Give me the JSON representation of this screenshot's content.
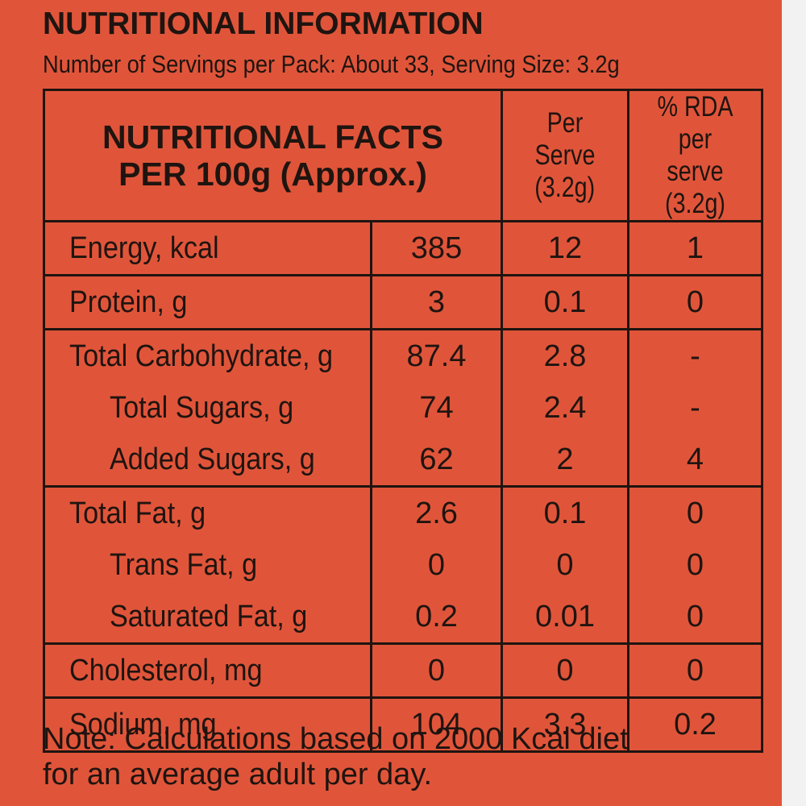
{
  "heading": "NUTRITIONAL INFORMATION",
  "servings_line": "Number of Servings per Pack: About 33, Serving Size: 3.2g",
  "table": {
    "header": {
      "main_line1": "NUTRITIONAL FACTS",
      "main_line2": "PER 100g (Approx.)",
      "per_serve_line1": "Per Serve",
      "per_serve_line2": "(3.2g)",
      "rda_line1": "% RDA per",
      "rda_line2": "serve (3.2g)"
    },
    "energy": {
      "name": "Energy, kcal",
      "per100": "385",
      "serve": "12",
      "rda": "1"
    },
    "protein": {
      "name": "Protein, g",
      "per100": "3",
      "serve": "0.1",
      "rda": "0"
    },
    "carb": {
      "name": "Total Carbohydrate, g",
      "per100": "87.4",
      "serve": "2.8",
      "rda": "-"
    },
    "sugars": {
      "name": "Total Sugars, g",
      "per100": "74",
      "serve": "2.4",
      "rda": "-"
    },
    "added_sugars": {
      "name": "Added Sugars, g",
      "per100": "62",
      "serve": "2",
      "rda": "4"
    },
    "fat": {
      "name": "Total Fat, g",
      "per100": "2.6",
      "serve": "0.1",
      "rda": "0"
    },
    "trans_fat": {
      "name": "Trans Fat, g",
      "per100": "0",
      "serve": "0",
      "rda": "0"
    },
    "sat_fat": {
      "name": "Saturated Fat, g",
      "per100": "0.2",
      "serve": "0.01",
      "rda": "0"
    },
    "cholesterol": {
      "name": "Cholesterol, mg",
      "per100": "0",
      "serve": "0",
      "rda": "0"
    },
    "sodium": {
      "name": "Sodium, mg",
      "per100": "104",
      "serve": "3.3",
      "rda": "0.2"
    }
  },
  "note_line1": "Note: Calculations based on 2000 Kcal diet",
  "note_line2": "for an average adult per day.",
  "colors": {
    "background": "#e0553a",
    "text": "#1f1410"
  }
}
